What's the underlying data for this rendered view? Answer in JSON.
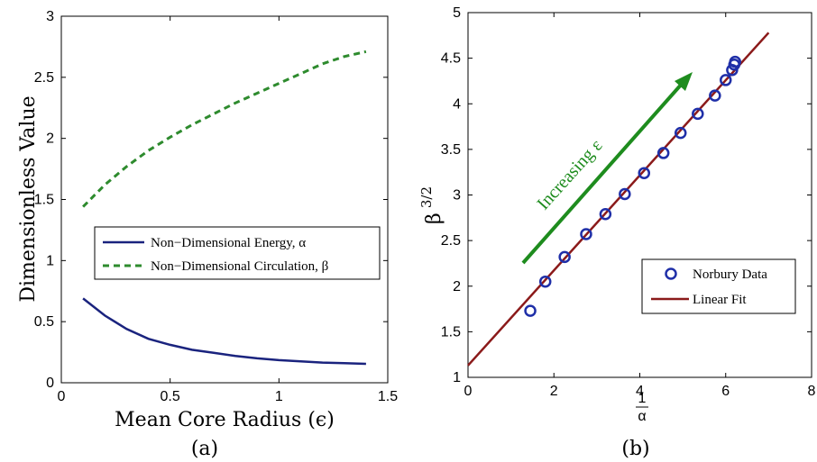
{
  "chart_data": [
    {
      "type": "line",
      "caption": "(a)",
      "xlabel": "Mean Core Radius (ϵ)",
      "ylabel": "Dimensionless Value",
      "xlim": [
        0,
        1.5
      ],
      "ylim": [
        0,
        3
      ],
      "xticks": [
        "0",
        "0.5",
        "1",
        "1.5"
      ],
      "yticks": [
        "0",
        "0.5",
        "1",
        "1.5",
        "2",
        "2.5",
        "3"
      ],
      "legend_position": "middle-right",
      "series": [
        {
          "name": "Non−Dimensional Energy, α",
          "color": "#1a237e",
          "style": "solid",
          "x": [
            0.1,
            0.2,
            0.3,
            0.4,
            0.5,
            0.6,
            0.7,
            0.8,
            0.9,
            1.0,
            1.1,
            1.2,
            1.3,
            1.4
          ],
          "y": [
            0.69,
            0.55,
            0.44,
            0.36,
            0.31,
            0.27,
            0.245,
            0.22,
            0.2,
            0.185,
            0.175,
            0.165,
            0.16,
            0.155
          ]
        },
        {
          "name": "Non−Dimensional Circulation, β",
          "color": "#2e8b2e",
          "style": "dashed",
          "x": [
            0.1,
            0.2,
            0.3,
            0.4,
            0.5,
            0.6,
            0.7,
            0.8,
            0.9,
            1.0,
            1.1,
            1.2,
            1.3,
            1.4
          ],
          "y": [
            1.44,
            1.62,
            1.77,
            1.9,
            2.01,
            2.11,
            2.2,
            2.29,
            2.37,
            2.45,
            2.53,
            2.61,
            2.67,
            2.71
          ]
        }
      ]
    },
    {
      "type": "scatter",
      "caption": "(b)",
      "xlabel_num": "1",
      "xlabel_den": "α",
      "ylabel_base": "β",
      "ylabel_exp": "3/2",
      "xlim": [
        0,
        8
      ],
      "ylim": [
        1,
        5
      ],
      "xticks": [
        "0",
        "2",
        "4",
        "6",
        "8"
      ],
      "yticks": [
        "1",
        "1.5",
        "2",
        "2.5",
        "3",
        "3.5",
        "4",
        "4.5",
        "5"
      ],
      "legend_position": "bottom-right",
      "annotation": "Increasing  ε",
      "annotation_color": "#1e8c1e",
      "series": [
        {
          "name": "Norbury Data",
          "color": "#1f2fa8",
          "marker": "circle",
          "x": [
            1.45,
            1.8,
            2.25,
            2.75,
            3.2,
            3.65,
            4.1,
            4.55,
            4.95,
            5.35,
            5.75,
            6.0,
            6.15,
            6.2,
            6.22
          ],
          "y": [
            1.73,
            2.05,
            2.32,
            2.57,
            2.79,
            3.01,
            3.24,
            3.46,
            3.68,
            3.89,
            4.09,
            4.26,
            4.37,
            4.43,
            4.46
          ]
        },
        {
          "name": "Linear Fit",
          "color": "#8b1a1a",
          "style": "solid",
          "x": [
            0,
            7
          ],
          "y": [
            1.13,
            4.78
          ]
        }
      ]
    }
  ]
}
